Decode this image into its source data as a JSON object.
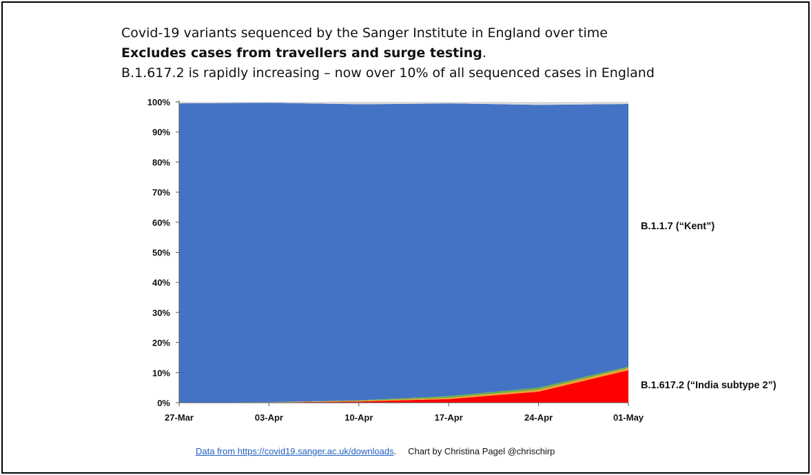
{
  "title_lines": [
    "Covid-19 variants sequenced by the Sanger Institute in England over time",
    "Excludes cases from travellers and surge testing",
    "B.1.617.2 is rapidly increasing – now over 10% of all sequenced cases in England"
  ],
  "title_line2_suffix": ".",
  "footer": {
    "source": "Data from https://covid19.sanger.ac.uk/downloads",
    "source_suffix": ".",
    "credit": "Chart by Christina Pagel @chrischirp"
  },
  "colors": {
    "india_subtype_2": "#ff0000",
    "other_orange": "#f0a030",
    "other_green": "#70ad47",
    "kent": "#4472c4",
    "top_band": "#d9d9d9"
  },
  "chart_data": {
    "type": "area",
    "stacked": true,
    "x": [
      "27-Mar",
      "03-Apr",
      "10-Apr",
      "17-Apr",
      "24-Apr",
      "01-May"
    ],
    "ylim": [
      0,
      1
    ],
    "yticks": [
      "0%",
      "10%",
      "20%",
      "30%",
      "40%",
      "50%",
      "60%",
      "70%",
      "80%",
      "90%",
      "100%"
    ],
    "series": [
      {
        "name": "B.1.617.2 (“India subtype 2”)",
        "color_key": "india_subtype_2",
        "values": [
          0.0,
          0.001,
          0.004,
          0.012,
          0.037,
          0.108
        ]
      },
      {
        "color_key": "other_orange",
        "values": [
          0.0,
          0.0005,
          0.002,
          0.004,
          0.006,
          0.007
        ]
      },
      {
        "color_key": "other_green",
        "values": [
          0.0,
          0.0005,
          0.002,
          0.006,
          0.007,
          0.005
        ]
      },
      {
        "name": "B.1.1.7 (“Kent”)",
        "color_key": "kent",
        "values": [
          0.995,
          0.995,
          0.984,
          0.973,
          0.94,
          0.873
        ]
      },
      {
        "color_key": "top_band",
        "values": [
          0.005,
          0.003,
          0.008,
          0.005,
          0.01,
          0.007
        ]
      }
    ],
    "labels": [
      "B.1.1.7 (“Kent”)",
      "B.1.617.2 (“India subtype 2”)"
    ]
  }
}
